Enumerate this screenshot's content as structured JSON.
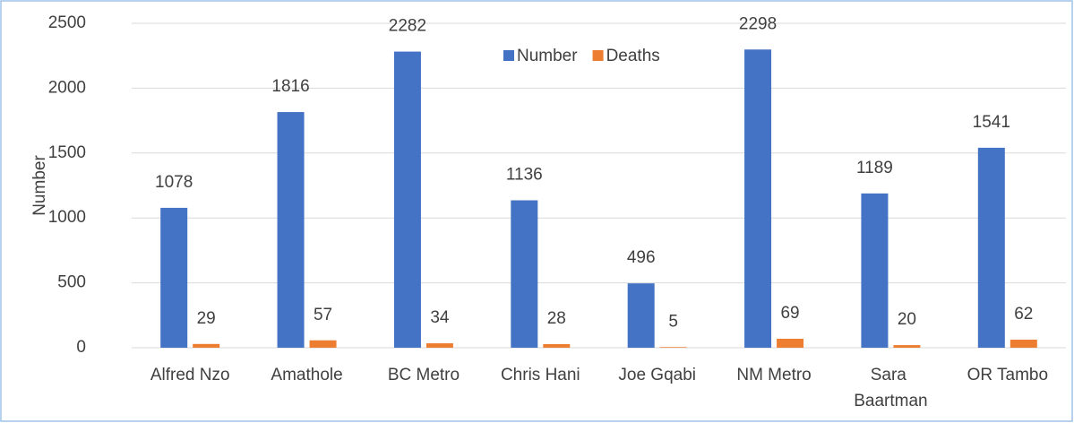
{
  "chart_data": {
    "type": "bar",
    "y_label": "Number",
    "categories": [
      "Alfred Nzo",
      "Amathole",
      "BC Metro",
      "Chris Hani",
      "Joe Gqabi",
      "NM Metro",
      "Sara Baartman",
      "OR Tambo"
    ],
    "series": [
      {
        "name": "Number",
        "color": "#4472c4",
        "values": [
          1078,
          1816,
          2282,
          1136,
          496,
          2298,
          1189,
          1541
        ]
      },
      {
        "name": "Deaths",
        "color": "#ed7d31",
        "values": [
          29,
          57,
          34,
          28,
          5,
          69,
          20,
          62
        ]
      }
    ],
    "ylim": [
      0,
      2500
    ],
    "yticks": [
      0,
      500,
      1000,
      1500,
      2000,
      2500
    ],
    "grid": true,
    "legend": "top"
  }
}
